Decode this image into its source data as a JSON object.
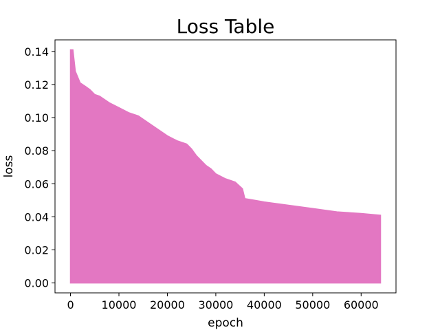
{
  "chart_data": {
    "type": "area",
    "title": "Loss Table",
    "xlabel": "epoch",
    "ylabel": "loss",
    "xlim": [
      -3200,
      67200
    ],
    "ylim": [
      -0.006,
      0.147
    ],
    "xticks": [
      0,
      10000,
      20000,
      30000,
      40000,
      50000,
      60000
    ],
    "xtick_labels": [
      "0",
      "10000",
      "20000",
      "30000",
      "40000",
      "50000",
      "60000"
    ],
    "yticks": [
      0.0,
      0.02,
      0.04,
      0.06,
      0.08,
      0.1,
      0.12,
      0.14
    ],
    "ytick_labels": [
      "0.00",
      "0.02",
      "0.04",
      "0.06",
      "0.08",
      "0.10",
      "0.12",
      "0.14"
    ],
    "grid": false,
    "series": [
      {
        "color": "#e377c2",
        "x": [
          0,
          500,
          1000,
          2000,
          3000,
          4000,
          5000,
          6000,
          7000,
          8000,
          10000,
          12000,
          14000,
          16000,
          18000,
          20000,
          22000,
          24000,
          25000,
          26000,
          27000,
          28000,
          29000,
          30000,
          32000,
          34000,
          35500,
          36000,
          38000,
          40000,
          45000,
          50000,
          55000,
          60000,
          64000
        ],
        "upper": [
          0.141,
          0.141,
          0.128,
          0.121,
          0.119,
          0.117,
          0.114,
          0.113,
          0.111,
          0.109,
          0.106,
          0.103,
          0.101,
          0.097,
          0.093,
          0.089,
          0.086,
          0.084,
          0.081,
          0.077,
          0.074,
          0.071,
          0.069,
          0.066,
          0.063,
          0.061,
          0.057,
          0.051,
          0.05,
          0.049,
          0.047,
          0.045,
          0.043,
          0.042,
          0.041
        ],
        "lower": [
          0.0,
          0.0,
          0.0,
          0.0,
          0.0,
          0.0,
          0.0,
          0.0,
          0.0,
          0.0,
          0.0,
          0.0,
          0.0,
          0.0,
          0.0,
          0.0,
          0.0,
          0.0,
          0.0,
          0.0,
          0.0,
          0.0,
          0.0,
          0.0,
          0.0,
          0.0,
          0.0,
          0.0,
          0.0,
          0.0,
          0.0,
          0.0,
          0.0,
          0.0,
          0.0
        ]
      }
    ]
  }
}
